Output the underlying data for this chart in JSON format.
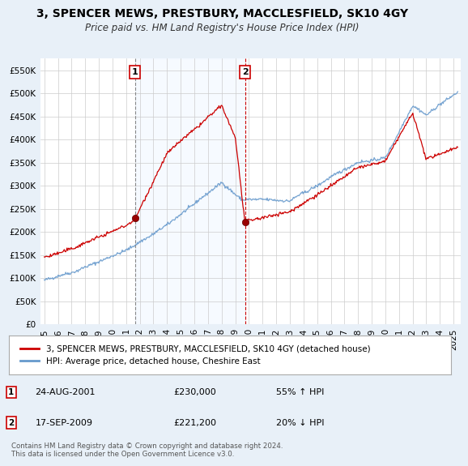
{
  "title": "3, SPENCER MEWS, PRESTBURY, MACCLESFIELD, SK10 4GY",
  "subtitle": "Price paid vs. HM Land Registry's House Price Index (HPI)",
  "ylim": [
    0,
    575000
  ],
  "yticks": [
    0,
    50000,
    100000,
    150000,
    200000,
    250000,
    300000,
    350000,
    400000,
    450000,
    500000,
    550000
  ],
  "ytick_labels": [
    "£0",
    "£50K",
    "£100K",
    "£150K",
    "£200K",
    "£250K",
    "£300K",
    "£350K",
    "£400K",
    "£450K",
    "£500K",
    "£550K"
  ],
  "legend_label_red": "3, SPENCER MEWS, PRESTBURY, MACCLESFIELD, SK10 4GY (detached house)",
  "legend_label_blue": "HPI: Average price, detached house, Cheshire East",
  "red_color": "#cc0000",
  "blue_color": "#6699cc",
  "shade_color": "#ddeeff",
  "annotation1_label": "1",
  "annotation1_date": "24-AUG-2001",
  "annotation1_price": "£230,000",
  "annotation1_hpi": "55% ↑ HPI",
  "annotation2_label": "2",
  "annotation2_date": "17-SEP-2009",
  "annotation2_price": "£221,200",
  "annotation2_hpi": "20% ↓ HPI",
  "footer": "Contains HM Land Registry data © Crown copyright and database right 2024.\nThis data is licensed under the Open Government Licence v3.0.",
  "background_color": "#e8f0f8",
  "plot_bg_color": "#ffffff",
  "grid_color": "#cccccc",
  "title_fontsize": 10,
  "subtitle_fontsize": 8.5,
  "tick_fontsize": 7.5,
  "sale1_year": 2001.65,
  "sale1_price": 230000,
  "sale2_year": 2009.72,
  "sale2_price": 221200,
  "xlim_left": 1994.7,
  "xlim_right": 2025.5
}
